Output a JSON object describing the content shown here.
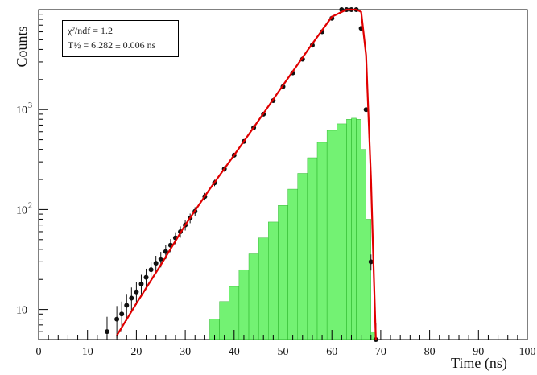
{
  "chart_data": {
    "type": "scatter",
    "xlabel": "Time (ns)",
    "ylabel": "Counts",
    "xlim": [
      0,
      100
    ],
    "ylim": [
      5,
      10000
    ],
    "yscale": "log",
    "x_ticks": [
      0,
      10,
      20,
      30,
      40,
      50,
      60,
      70,
      80,
      90,
      100
    ],
    "x_tick_labels": [
      "0",
      "10",
      "20",
      "30",
      "40",
      "50",
      "60",
      "70",
      "80",
      "90",
      "100"
    ],
    "y_ticks": [
      10,
      100,
      1000
    ],
    "y_tick_labels": [
      "10",
      "10",
      "10"
    ],
    "y_tick_exponents": [
      "",
      "2",
      "3"
    ],
    "stats": {
      "line1": "χ²/ndf = 1.2",
      "line2": "T½ = 6.282 ± 0.006 ns"
    },
    "series": [
      {
        "kind": "points",
        "color": "#111111",
        "x": [
          14,
          16,
          17,
          18,
          19,
          20,
          21,
          22,
          23,
          24,
          25,
          26,
          27,
          28,
          29,
          30,
          31,
          32,
          34,
          36,
          38,
          40,
          42,
          44,
          46,
          48,
          50,
          52,
          54,
          56,
          58,
          60,
          62,
          63,
          64,
          65,
          66,
          67,
          68,
          69
        ],
        "y": [
          6,
          8,
          9,
          11,
          13,
          15,
          18,
          21,
          25,
          29,
          32,
          38,
          44,
          52,
          60,
          70,
          82,
          96,
          135,
          185,
          255,
          350,
          480,
          660,
          900,
          1230,
          1700,
          2330,
          3200,
          4400,
          6000,
          8200,
          10000,
          11500,
          12500,
          10500,
          6500,
          1000,
          30,
          5
        ]
      },
      {
        "kind": "fit",
        "color": "#e00000",
        "x": [
          16,
          20,
          25,
          30,
          35,
          40,
          45,
          50,
          55,
          60,
          63,
          64,
          65,
          66,
          67,
          68,
          68.5,
          69
        ],
        "y": [
          5.5,
          11.5,
          28,
          70,
          160,
          350,
          780,
          1750,
          3900,
          8500,
          12000,
          12800,
          12500,
          9500,
          3500,
          200,
          30,
          5
        ]
      },
      {
        "kind": "histogram",
        "color": "#44ee44",
        "x": [
          33,
          35,
          37,
          39,
          41,
          43,
          45,
          47,
          49,
          51,
          53,
          55,
          57,
          59,
          61,
          63,
          64,
          65,
          66,
          67,
          68
        ],
        "y": [
          5,
          8,
          12,
          17,
          25,
          36,
          52,
          75,
          110,
          160,
          230,
          330,
          470,
          620,
          720,
          800,
          820,
          800,
          400,
          80,
          6
        ]
      }
    ]
  }
}
